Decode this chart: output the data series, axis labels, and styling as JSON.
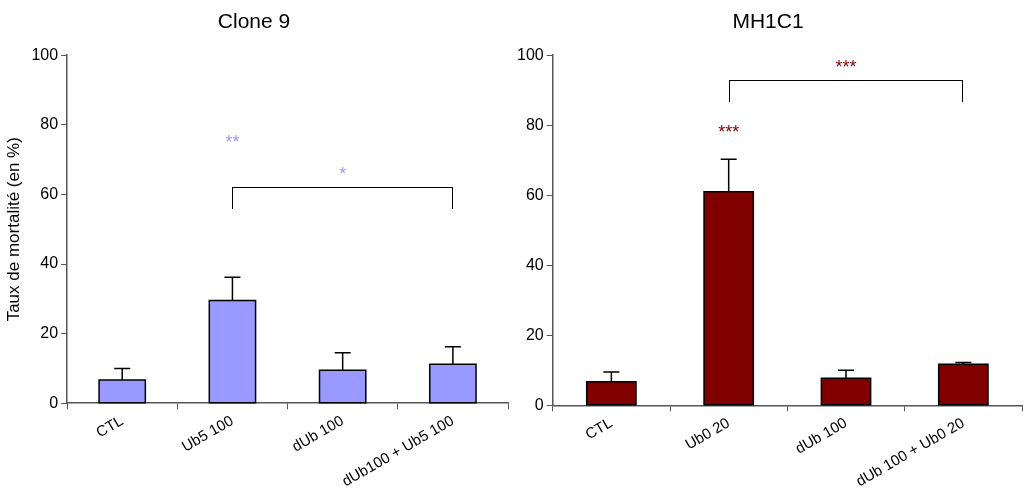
{
  "chart_data": [
    {
      "type": "bar",
      "title": "Clone 9",
      "ylabel": "Taux de mortalité (en %)",
      "categories": [
        "CTL",
        "Ub5 100",
        "dUb 100",
        "dUb100 + Ub5 100"
      ],
      "values": [
        6.7,
        29.5,
        9.5,
        11.2
      ],
      "errors": [
        [
          6.7,
          10
        ],
        [
          29.5,
          36.2
        ],
        [
          9.5,
          14.5
        ],
        [
          11.2,
          16.2
        ]
      ],
      "color": "#9999ff",
      "ylim": [
        0,
        100
      ],
      "yticks": [
        0,
        20,
        40,
        60,
        80,
        100
      ],
      "grid": false,
      "legend": false,
      "annotations": [
        "**",
        "*"
      ]
    },
    {
      "type": "bar",
      "title": "MH1C1",
      "categories": [
        "CTL",
        "Ub0 20",
        "dUb 100",
        "dUb 100 + Ub0 20"
      ],
      "values": [
        6.7,
        61,
        7.7,
        11.7
      ],
      "errors": [
        [
          6.7,
          9.5
        ],
        [
          61,
          70.3
        ],
        [
          7.7,
          10
        ],
        [
          11.7,
          12.2
        ]
      ],
      "color": "#800000",
      "ylim": [
        0,
        100
      ],
      "yticks": [
        0,
        20,
        40,
        60,
        80,
        100
      ],
      "grid": false,
      "legend": false,
      "annotations": [
        "***",
        "***"
      ]
    }
  ]
}
